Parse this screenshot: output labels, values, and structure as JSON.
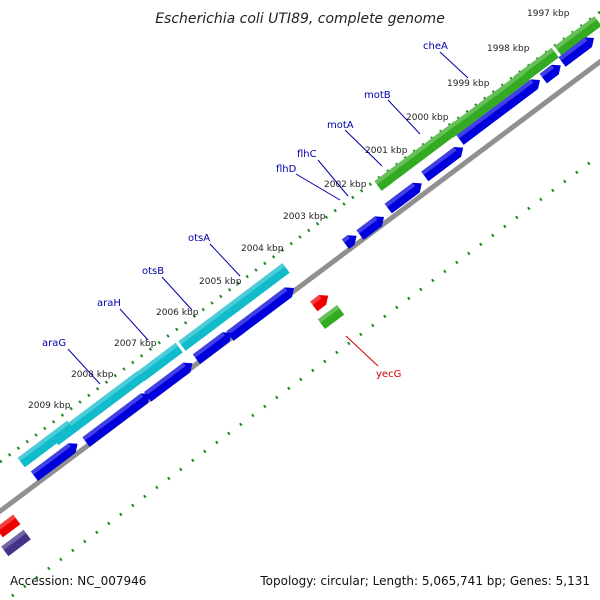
{
  "title": "Escherichia coli UTI89, complete genome",
  "footer": {
    "accession": "Accession: NC_007946",
    "topology": "Topology: circular; Length: 5,065,741 bp; Genes: 5,131"
  },
  "ticks": [
    "1997 kbp",
    "1998 kbp",
    "1999 kbp",
    "2000 kbp",
    "2001 kbp",
    "2002 kbp",
    "2003 kbp",
    "2004 kbp",
    "2005 kbp",
    "2006 kbp",
    "2007 kbp",
    "2008 kbp",
    "2009 kbp"
  ],
  "genes": [
    {
      "name": "cheA",
      "strand": "top"
    },
    {
      "name": "motB",
      "strand": "top"
    },
    {
      "name": "motA",
      "strand": "top"
    },
    {
      "name": "flhC",
      "strand": "top"
    },
    {
      "name": "flhD",
      "strand": "top"
    },
    {
      "name": "otsA",
      "strand": "top"
    },
    {
      "name": "otsB",
      "strand": "top"
    },
    {
      "name": "araH",
      "strand": "top"
    },
    {
      "name": "araG",
      "strand": "top"
    },
    {
      "name": "yecG",
      "strand": "bottom"
    }
  ],
  "colors": {
    "backbone": "#909090",
    "cds": "#0000dd",
    "green_feature": "#33aa22",
    "cyan_feature": "#11bbcc",
    "red_feature": "#ee0000",
    "dark_feature": "#443388",
    "label_top": "#0000aa",
    "label_bottom": "#cc0000",
    "dots": "#228822"
  }
}
